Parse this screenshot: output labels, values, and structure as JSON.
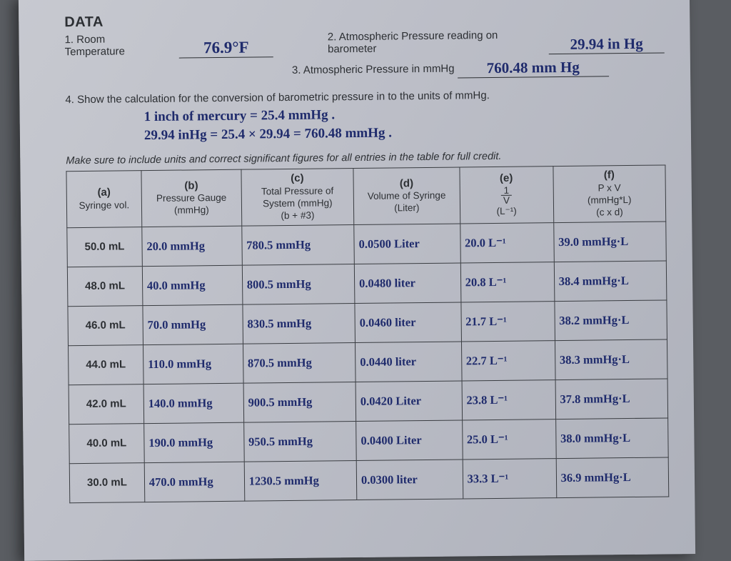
{
  "header": "DATA",
  "q1_label": "1.   Room Temperature",
  "q1_val": "76.9°F",
  "q2_label": "2. Atmospheric Pressure reading on barometer",
  "q2_val": "29.94 in Hg",
  "q3_label": "3. Atmospheric Pressure in mmHg",
  "q3_val": "760.48 mm Hg",
  "q4_label": "4.   Show the calculation for the conversion of barometric pressure in to the units of mmHg.",
  "calc_l1": "1 inch of mercury = 25.4 mmHg .",
  "calc_l2": "29.94 inHg  =  25.4 × 29.94 =   760.48 mmHg .",
  "note": "Make sure to include units and correct significant figures for all entries in the table for full credit.",
  "headers": {
    "a": {
      "lt": "(a)",
      "t": "Syringe vol."
    },
    "b": {
      "lt": "(b)",
      "t": "Pressure Gauge (mmHg)"
    },
    "c": {
      "lt": "(c)",
      "t": "Total Pressure of System (mmHg)",
      "s": "(b + #3)"
    },
    "d": {
      "lt": "(d)",
      "t": "Volume of Syringe",
      "s": "(Liter)"
    },
    "e": {
      "lt": "(e)",
      "s": "(L⁻¹)"
    },
    "f": {
      "lt": "(f)",
      "t": "P x V",
      "u": "(mmHg*L)",
      "s": "(c x d)"
    }
  },
  "frac": {
    "n": "1",
    "d": "V"
  },
  "rows": [
    {
      "a": "50.0 mL",
      "b": "20.0 mmHg",
      "c": "780.5 mmHg",
      "d": "0.0500 Liter",
      "e": "20.0 L⁻¹",
      "f": "39.0 mmHg·L"
    },
    {
      "a": "48.0 mL",
      "b": "40.0 mmHg",
      "c": "800.5 mmHg",
      "d": "0.0480 liter",
      "e": "20.8 L⁻¹",
      "f": "38.4 mmHg·L"
    },
    {
      "a": "46.0 mL",
      "b": "70.0 mmHg",
      "c": "830.5 mmHg",
      "d": "0.0460 liter",
      "e": "21.7 L⁻¹",
      "f": "38.2 mmHg·L"
    },
    {
      "a": "44.0 mL",
      "b": "110.0 mmHg",
      "c": "870.5 mmHg",
      "d": "0.0440 liter",
      "e": "22.7 L⁻¹",
      "f": "38.3 mmHg·L"
    },
    {
      "a": "42.0 mL",
      "b": "140.0 mmHg",
      "c": "900.5 mmHg",
      "d": "0.0420 Liter",
      "e": "23.8 L⁻¹",
      "f": "37.8 mmHg·L"
    },
    {
      "a": "40.0 mL",
      "b": "190.0 mmHg",
      "c": "950.5 mmHg",
      "d": "0.0400 Liter",
      "e": "25.0 L⁻¹",
      "f": "38.0 mmHg·L"
    },
    {
      "a": "30.0 mL",
      "b": "470.0 mmHg",
      "c": "1230.5 mmHg",
      "d": "0.0300 liter",
      "e": "33.3 L⁻¹",
      "f": "36.9 mmHg·L"
    }
  ],
  "colors": {
    "paper_grad_start": "#c7c9d0",
    "paper_grad_end": "#aeb1bb",
    "ink_print": "#2c2f33",
    "ink_hand": "#1f2b6c",
    "border": "#3a3d42",
    "page_bg": "#5a5d62"
  }
}
